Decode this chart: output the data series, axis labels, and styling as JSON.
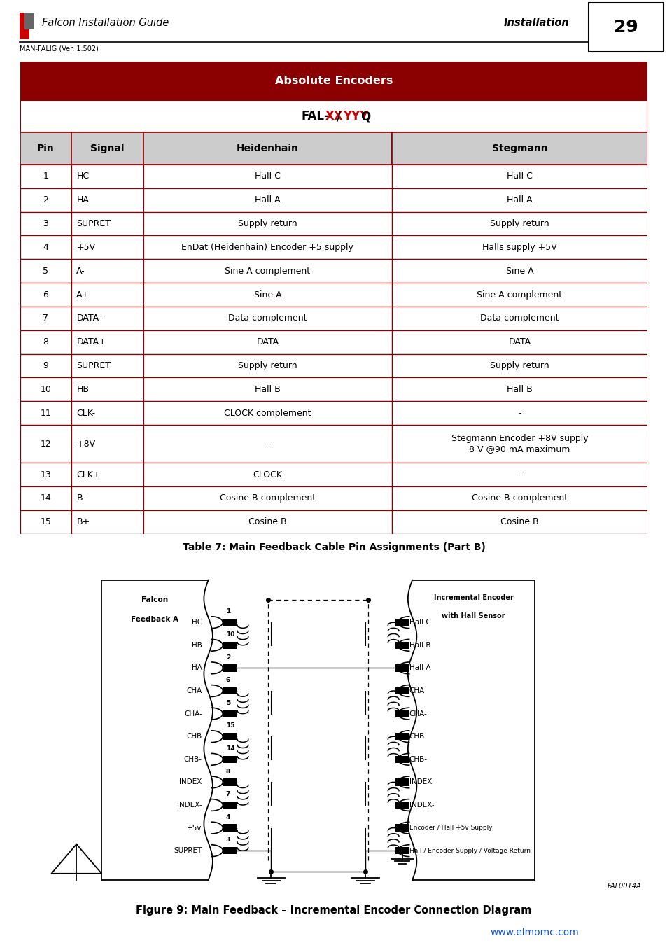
{
  "page_title": "Falcon Installation Guide",
  "page_subtitle": "MAN-FALIG (Ver. 1.502)",
  "page_section": "Installation",
  "page_number": "29",
  "table_title": "Absolute Encoders",
  "col_headers": [
    "Pin",
    "Signal",
    "Heidenhain",
    "Stegmann"
  ],
  "table_rows": [
    [
      "1",
      "HC",
      "Hall C",
      "Hall C"
    ],
    [
      "2",
      "HA",
      "Hall A",
      "Hall A"
    ],
    [
      "3",
      "SUPRET",
      "Supply return",
      "Supply return"
    ],
    [
      "4",
      "+5V",
      "EnDat (Heidenhain) Encoder +5 supply",
      "Halls supply +5V"
    ],
    [
      "5",
      "A-",
      "Sine A complement",
      "Sine A"
    ],
    [
      "6",
      "A+",
      "Sine A",
      "Sine A complement"
    ],
    [
      "7",
      "DATA-",
      "Data complement",
      "Data complement"
    ],
    [
      "8",
      "DATA+",
      "DATA",
      "DATA"
    ],
    [
      "9",
      "SUPRET",
      "Supply return",
      "Supply return"
    ],
    [
      "10",
      "HB",
      "Hall B",
      "Hall B"
    ],
    [
      "11",
      "CLK-",
      "CLOCK complement",
      "-"
    ],
    [
      "12",
      "+8V",
      "-",
      "Stegmann Encoder +8V supply\n8 V @90 mA maximum"
    ],
    [
      "13",
      "CLK+",
      "CLOCK",
      "-"
    ],
    [
      "14",
      "B-",
      "Cosine B complement",
      "Cosine B complement"
    ],
    [
      "15",
      "B+",
      "Cosine B",
      "Cosine B"
    ]
  ],
  "table_caption": "Table 7: Main Feedback Cable Pin Assignments (Part B)",
  "figure_caption": "Figure 9: Main Feedback – Incremental Encoder Connection Diagram",
  "website": "www.elmomc.com",
  "header_bg": "#8B0000",
  "col_header_bg": "#CCCCCC",
  "border_color": "#8B0000"
}
